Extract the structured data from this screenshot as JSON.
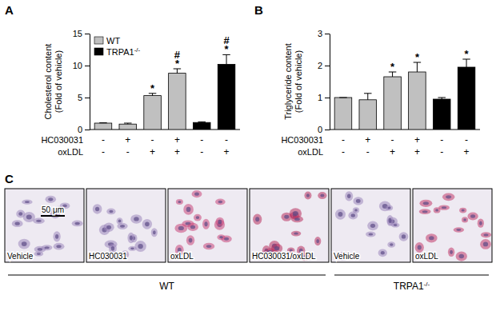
{
  "chart_data": [
    {
      "type": "bar",
      "title": "A",
      "ylabel": [
        "Cholesterol content",
        "(Fold of vehicle)"
      ],
      "categories": [
        null,
        null,
        null,
        null,
        null,
        null
      ],
      "treatments": [
        {
          "name": "HC030031",
          "values": [
            "-",
            "+",
            "-",
            "+",
            "-",
            "-"
          ]
        },
        {
          "name": "oxLDL",
          "values": [
            "-",
            "-",
            "+",
            "+",
            "-",
            "+"
          ]
        }
      ],
      "series": [
        {
          "name": "WT",
          "color": "#c0c0c0",
          "values": [
            1.0,
            0.85,
            5.3,
            8.8,
            null,
            null
          ],
          "errors": [
            0.05,
            0.15,
            0.35,
            0.7,
            null,
            null
          ],
          "significance": [
            null,
            null,
            [
              "*"
            ],
            [
              "#",
              "*"
            ],
            null,
            null
          ]
        },
        {
          "name": "TRPA1-/-",
          "color": "#000000",
          "values": [
            null,
            null,
            null,
            null,
            1.1,
            10.2
          ],
          "errors": [
            null,
            null,
            null,
            null,
            0.1,
            1.5
          ],
          "significance": [
            null,
            null,
            null,
            null,
            null,
            [
              "#",
              "*"
            ]
          ]
        }
      ],
      "ylim": [
        0,
        15
      ],
      "yticks": [
        0,
        5,
        10,
        15
      ],
      "legend": "top-left"
    },
    {
      "type": "bar",
      "title": "B",
      "ylabel": [
        "Triglyceride content",
        "(Fold of vehicle)"
      ],
      "categories": [
        null,
        null,
        null,
        null,
        null,
        null
      ],
      "treatments": [
        {
          "name": "HC030031",
          "values": [
            "-",
            "+",
            "-",
            "+",
            "-",
            "-"
          ]
        },
        {
          "name": "oxLDL",
          "values": [
            "-",
            "-",
            "+",
            "+",
            "-",
            "+"
          ]
        }
      ],
      "series": [
        {
          "color": "#c0c0c0",
          "values": [
            1.0,
            0.93,
            1.65,
            1.8,
            null,
            null
          ],
          "errors": [
            0,
            0.2,
            0.15,
            0.3,
            null,
            null
          ],
          "significance": [
            null,
            null,
            [
              "*"
            ],
            [
              "*"
            ],
            null,
            null
          ]
        },
        {
          "color": "#000000",
          "values": [
            null,
            null,
            null,
            null,
            0.95,
            1.95
          ],
          "errors": [
            null,
            null,
            null,
            null,
            0.05,
            0.25
          ],
          "significance": [
            null,
            null,
            null,
            null,
            null,
            [
              "*"
            ]
          ]
        }
      ],
      "ylim": [
        0,
        3
      ],
      "yticks": [
        0,
        1,
        2,
        3
      ]
    }
  ],
  "panel_c": {
    "title": "C",
    "scale_bar": "50 μm",
    "groups": [
      {
        "label": "WT",
        "images": [
          {
            "label": "Vehicle",
            "color": "#9c86bb"
          },
          {
            "label": "HC030031",
            "color": "#9c86bb"
          },
          {
            "label": "oxLDL",
            "color": "#c8457a"
          },
          {
            "label": "HC030031/oxLDL",
            "color": "#b8305f"
          }
        ]
      },
      {
        "label": "TRPA1-/-",
        "images": [
          {
            "label": "Vehicle",
            "color": "#9c86bb"
          },
          {
            "label": "oxLDL",
            "color": "#c23a6c"
          }
        ]
      }
    ]
  }
}
